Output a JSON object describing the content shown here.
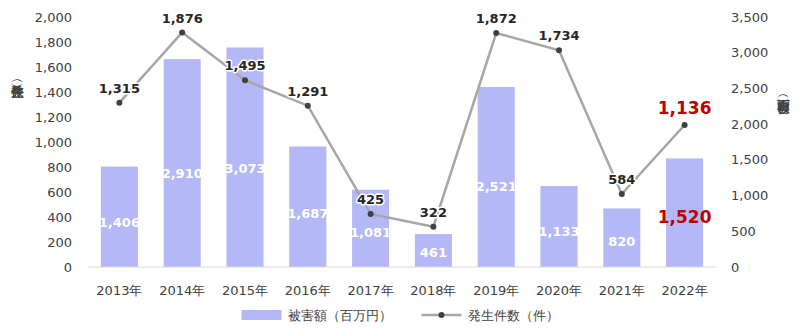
{
  "chart_data": {
    "type": "bar",
    "ylabel": "発生件数（件）",
    "y2label": "被害額（百万円）",
    "categories": [
      "2013年",
      "2014年",
      "2015年",
      "2016年",
      "2017年",
      "2018年",
      "2019年",
      "2020年",
      "2021年",
      "2022年"
    ],
    "ylim": [
      0,
      2000
    ],
    "yticks": [
      0,
      200,
      400,
      600,
      800,
      {
        "value": 1000,
        "label": "1,000"
      },
      {
        "value": 1200,
        "label": "1,200"
      },
      {
        "value": 1400,
        "label": "1,400"
      },
      {
        "value": 1600,
        "label": "1,600"
      },
      {
        "value": 1800,
        "label": "1,800"
      },
      {
        "value": 2000,
        "label": "2,000"
      }
    ],
    "y2lim": [
      0,
      3500
    ],
    "y2ticks": [
      0,
      500,
      {
        "value": 1000,
        "label": "1,000"
      },
      {
        "value": 1500,
        "label": "1,500"
      },
      {
        "value": 2000,
        "label": "2,000"
      },
      {
        "value": 2500,
        "label": "2,500"
      },
      {
        "value": 3000,
        "label": "3,000"
      },
      {
        "value": 3500,
        "label": "3,500"
      }
    ],
    "grid": false,
    "legend": "bottom",
    "data_labels": true,
    "series": [
      {
        "name": "被害額（百万円）",
        "type": "bar",
        "axis": "y2",
        "color": "#b4b8f6",
        "values": [
          1406,
          2910,
          3073,
          1687,
          1081,
          461,
          2521,
          1133,
          820,
          1520
        ],
        "value_labels": [
          "1,406",
          "2,910",
          "3,073",
          "1,687",
          "1,081",
          "461",
          "2,521",
          "1,133",
          "820",
          "1,520"
        ]
      },
      {
        "name": "発生件数（件）",
        "type": "line",
        "axis": "y",
        "color": "#a6a6a6",
        "marker": "circle",
        "values": [
          1315,
          1876,
          1495,
          1291,
          425,
          322,
          1872,
          1734,
          584,
          1136
        ],
        "value_labels": [
          "1,315",
          "1,876",
          "1,495",
          "1,291",
          "425",
          "322",
          "1,872",
          "1,734",
          "584",
          "1,136"
        ]
      }
    ]
  }
}
